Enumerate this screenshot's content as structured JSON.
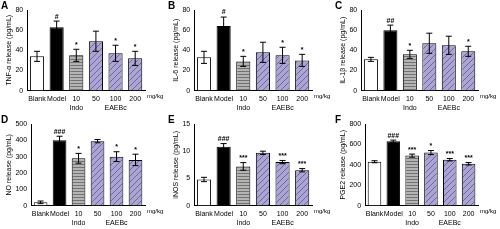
{
  "chart_data": [
    {
      "type": "bar",
      "panel": "A",
      "y_label": "TNF-α release (pg/mL)",
      "categories": [
        "Blank",
        "Model",
        "10",
        "50",
        "100",
        "200"
      ],
      "group_labels": [
        null,
        null,
        "Indo",
        "EAEBc",
        "EAEBc",
        "EAEBc"
      ],
      "unit": "mg/kg",
      "values": [
        34,
        63,
        35,
        49,
        37,
        32
      ],
      "errors": [
        5,
        6,
        6,
        10,
        8,
        7
      ],
      "significance": [
        null,
        "#",
        "*",
        null,
        "*",
        "*"
      ],
      "colors": [
        "#ffffff",
        "#000000",
        "#b4b4b4",
        "#aaa4d8",
        "#aaa4d8",
        "#aaa4d8"
      ],
      "ylim": [
        0,
        80
      ],
      "yticks": [
        0,
        20,
        40,
        60,
        80
      ],
      "grid": false
    },
    {
      "type": "bar",
      "panel": "B",
      "y_label": "IL-6 release (pg/mL)",
      "categories": [
        "Blank",
        "Model",
        "10",
        "50",
        "100",
        "200"
      ],
      "group_labels": [
        null,
        null,
        "Indo",
        "EAEBc",
        "EAEBc",
        "EAEBc"
      ],
      "unit": "mg/kg",
      "values": [
        33,
        64,
        29,
        38,
        35,
        30
      ],
      "errors": [
        6,
        9,
        5,
        10,
        8,
        6
      ],
      "significance": [
        null,
        "#",
        "*",
        null,
        "*",
        "*"
      ],
      "colors": [
        "#ffffff",
        "#000000",
        "#b4b4b4",
        "#aaa4d8",
        "#aaa4d8",
        "#aaa4d8"
      ],
      "ylim": [
        0,
        80
      ],
      "yticks": [
        0,
        20,
        40,
        60,
        80
      ],
      "grid": false
    },
    {
      "type": "bar",
      "panel": "C",
      "y_label": "IL-1β release (pg/mL)",
      "categories": [
        "Blank",
        "Model",
        "10",
        "50",
        "100",
        "200"
      ],
      "group_labels": [
        null,
        null,
        "Indo",
        "EAEBc",
        "EAEBc",
        "EAEBc"
      ],
      "unit": "mg/kg",
      "values": [
        31,
        60,
        36,
        47,
        45,
        39
      ],
      "errors": [
        2,
        5,
        4,
        10,
        9,
        5
      ],
      "significance": [
        null,
        "##",
        "*",
        null,
        null,
        "*"
      ],
      "colors": [
        "#ffffff",
        "#000000",
        "#b4b4b4",
        "#aaa4d8",
        "#aaa4d8",
        "#aaa4d8"
      ],
      "ylim": [
        0,
        80
      ],
      "yticks": [
        0,
        20,
        40,
        60,
        80
      ],
      "grid": false
    },
    {
      "type": "bar",
      "panel": "D",
      "y_label": "NO release (pg/mL)",
      "categories": [
        "Blank",
        "Model",
        "10",
        "50",
        "100",
        "200"
      ],
      "group_labels": [
        null,
        null,
        "Indo",
        "EAEBc",
        "EAEBc",
        "EAEBc"
      ],
      "unit": "mg/kg",
      "values": [
        20,
        400,
        290,
        395,
        300,
        280
      ],
      "errors": [
        8,
        25,
        30,
        10,
        30,
        35
      ],
      "significance": [
        null,
        "###",
        "*",
        null,
        "*",
        "*"
      ],
      "colors": [
        "#ffffff",
        "#000000",
        "#b4b4b4",
        "#aaa4d8",
        "#aaa4d8",
        "#aaa4d8"
      ],
      "ylim": [
        0,
        500
      ],
      "yticks": [
        0,
        100,
        200,
        300,
        400,
        500
      ],
      "grid": false
    },
    {
      "type": "bar",
      "panel": "E",
      "y_label": "iNOS release (pg/mL)",
      "categories": [
        "Blank",
        "Model",
        "10",
        "50",
        "100",
        "200"
      ],
      "group_labels": [
        null,
        null,
        "Indo",
        "EAEBc",
        "EAEBc",
        "EAEBc"
      ],
      "unit": "mg/kg",
      "values": [
        4.8,
        10.8,
        7.2,
        9.7,
        8,
        6.5
      ],
      "errors": [
        0.4,
        0.6,
        0.7,
        0.3,
        0.3,
        0.3
      ],
      "significance": [
        null,
        "###",
        "***",
        null,
        "***",
        "***"
      ],
      "colors": [
        "#ffffff",
        "#000000",
        "#b4b4b4",
        "#aaa4d8",
        "#aaa4d8",
        "#aaa4d8"
      ],
      "ylim": [
        0,
        15
      ],
      "yticks": [
        0,
        5,
        10,
        15
      ],
      "grid": false
    },
    {
      "type": "bar",
      "panel": "F",
      "y_label": "PGE2 release (pg/mL)",
      "categories": [
        "Blank",
        "Model",
        "10",
        "50",
        "100",
        "200"
      ],
      "group_labels": [
        null,
        null,
        "Indo",
        "EAEBc",
        "EAEBc",
        "EAEBc"
      ],
      "unit": "mg/kg",
      "values": [
        430,
        630,
        490,
        520,
        450,
        410
      ],
      "errors": [
        10,
        12,
        15,
        20,
        12,
        12
      ],
      "significance": [
        null,
        "###",
        "***",
        "*",
        "***",
        "***"
      ],
      "colors": [
        "#ffffff",
        "#000000",
        "#b4b4b4",
        "#aaa4d8",
        "#aaa4d8",
        "#aaa4d8"
      ],
      "ylim": [
        0,
        800
      ],
      "yticks": [
        0,
        200,
        400,
        600,
        800
      ],
      "grid": false
    }
  ]
}
